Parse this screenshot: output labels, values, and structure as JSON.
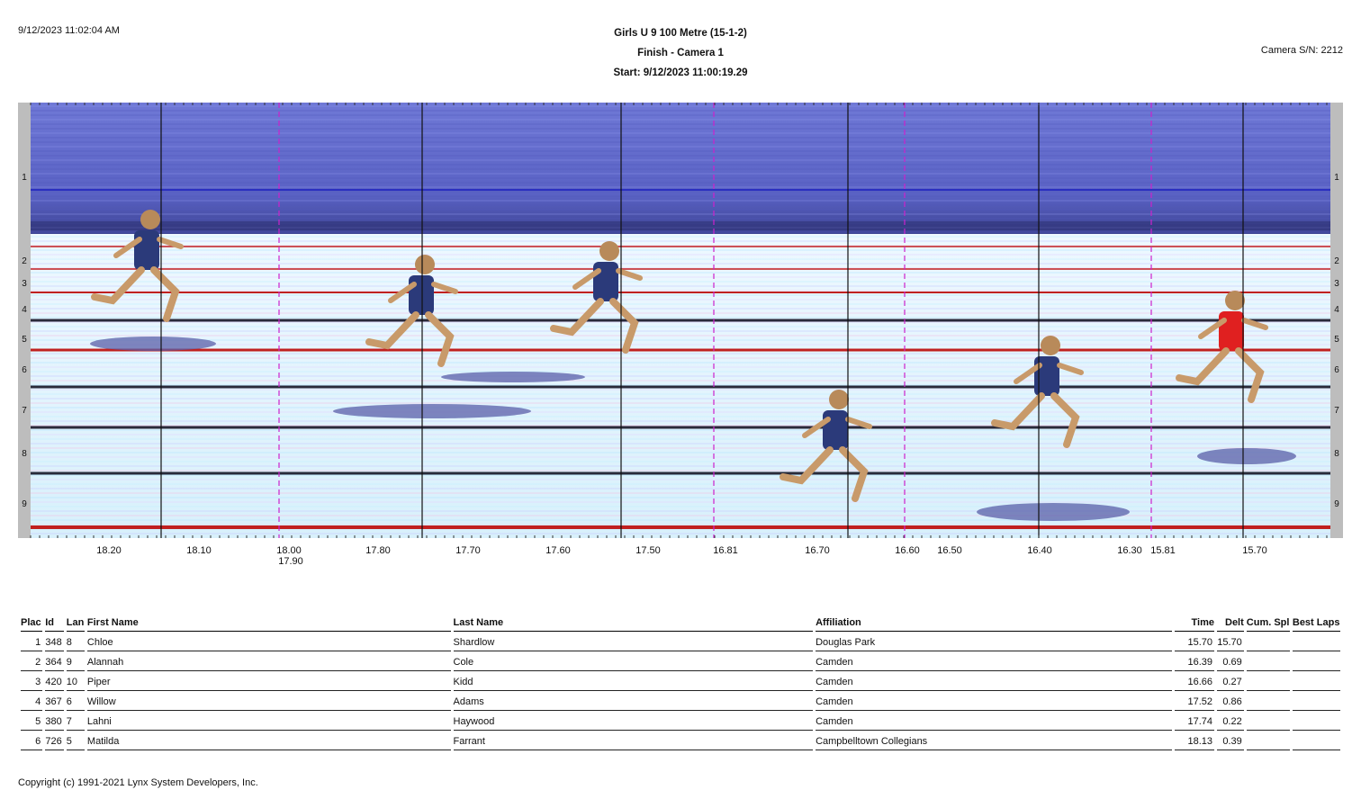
{
  "header": {
    "timestamp": "9/12/2023 11:02:04 AM",
    "event_title": "Girls U 9 100 Metre (15-1-2)",
    "camera_title": "Finish - Camera 1",
    "start_time": "Start: 9/12/2023 11:00:19.29",
    "camera_serial": "Camera S/N: 2212"
  },
  "lane_labels": [
    "1",
    "2",
    "3",
    "4",
    "5",
    "6",
    "7",
    "8",
    "9"
  ],
  "time_axis": {
    "labels": [
      "18.20",
      "18.10",
      "18.00",
      "17.90",
      "17.80",
      "17.70",
      "17.60",
      "17.50",
      "16.81",
      "16.70",
      "16.60",
      "16.50",
      "16.40",
      "16.30",
      "15.81",
      "15.70"
    ]
  },
  "results": {
    "columns": {
      "place": "Plac",
      "id": "Id",
      "lane": "Lan",
      "first_name": "First Name",
      "last_name": "Last Name",
      "affiliation": "Affiliation",
      "time": "Time",
      "delta": "Delt",
      "cum_split": "Cum. Spl",
      "best_laps": "Best Laps"
    },
    "rows": [
      {
        "place": "1",
        "id": "348",
        "lane": "8",
        "first_name": "Chloe",
        "last_name": "Shardlow",
        "affiliation": "Douglas Park",
        "time": "15.70",
        "delta": "15.70"
      },
      {
        "place": "2",
        "id": "364",
        "lane": "9",
        "first_name": "Alannah",
        "last_name": "Cole",
        "affiliation": "Camden",
        "time": "16.39",
        "delta": "0.69"
      },
      {
        "place": "3",
        "id": "420",
        "lane": "10",
        "first_name": "Piper",
        "last_name": "Kidd",
        "affiliation": "Camden",
        "time": "16.66",
        "delta": "0.27"
      },
      {
        "place": "4",
        "id": "367",
        "lane": "6",
        "first_name": "Willow",
        "last_name": "Adams",
        "affiliation": "Camden",
        "time": "17.52",
        "delta": "0.86"
      },
      {
        "place": "5",
        "id": "380",
        "lane": "7",
        "first_name": "Lahni",
        "last_name": "Haywood",
        "affiliation": "Camden",
        "time": "17.74",
        "delta": "0.22"
      },
      {
        "place": "6",
        "id": "726",
        "lane": "5",
        "first_name": "Matilda",
        "last_name": "Farrant",
        "affiliation": "Campbelltown Collegians",
        "time": "18.13",
        "delta": "0.39"
      }
    ]
  },
  "footer": {
    "copyright": "Copyright (c) 1991-2021 Lynx System Developers, Inc."
  },
  "colors": {
    "lane_line_red": "#c02020",
    "lane_line_dark": "#2a2a3a",
    "split_marker": "#cc22cc",
    "sky_band": "#5b63c8",
    "track_base": "#dff3ff"
  }
}
